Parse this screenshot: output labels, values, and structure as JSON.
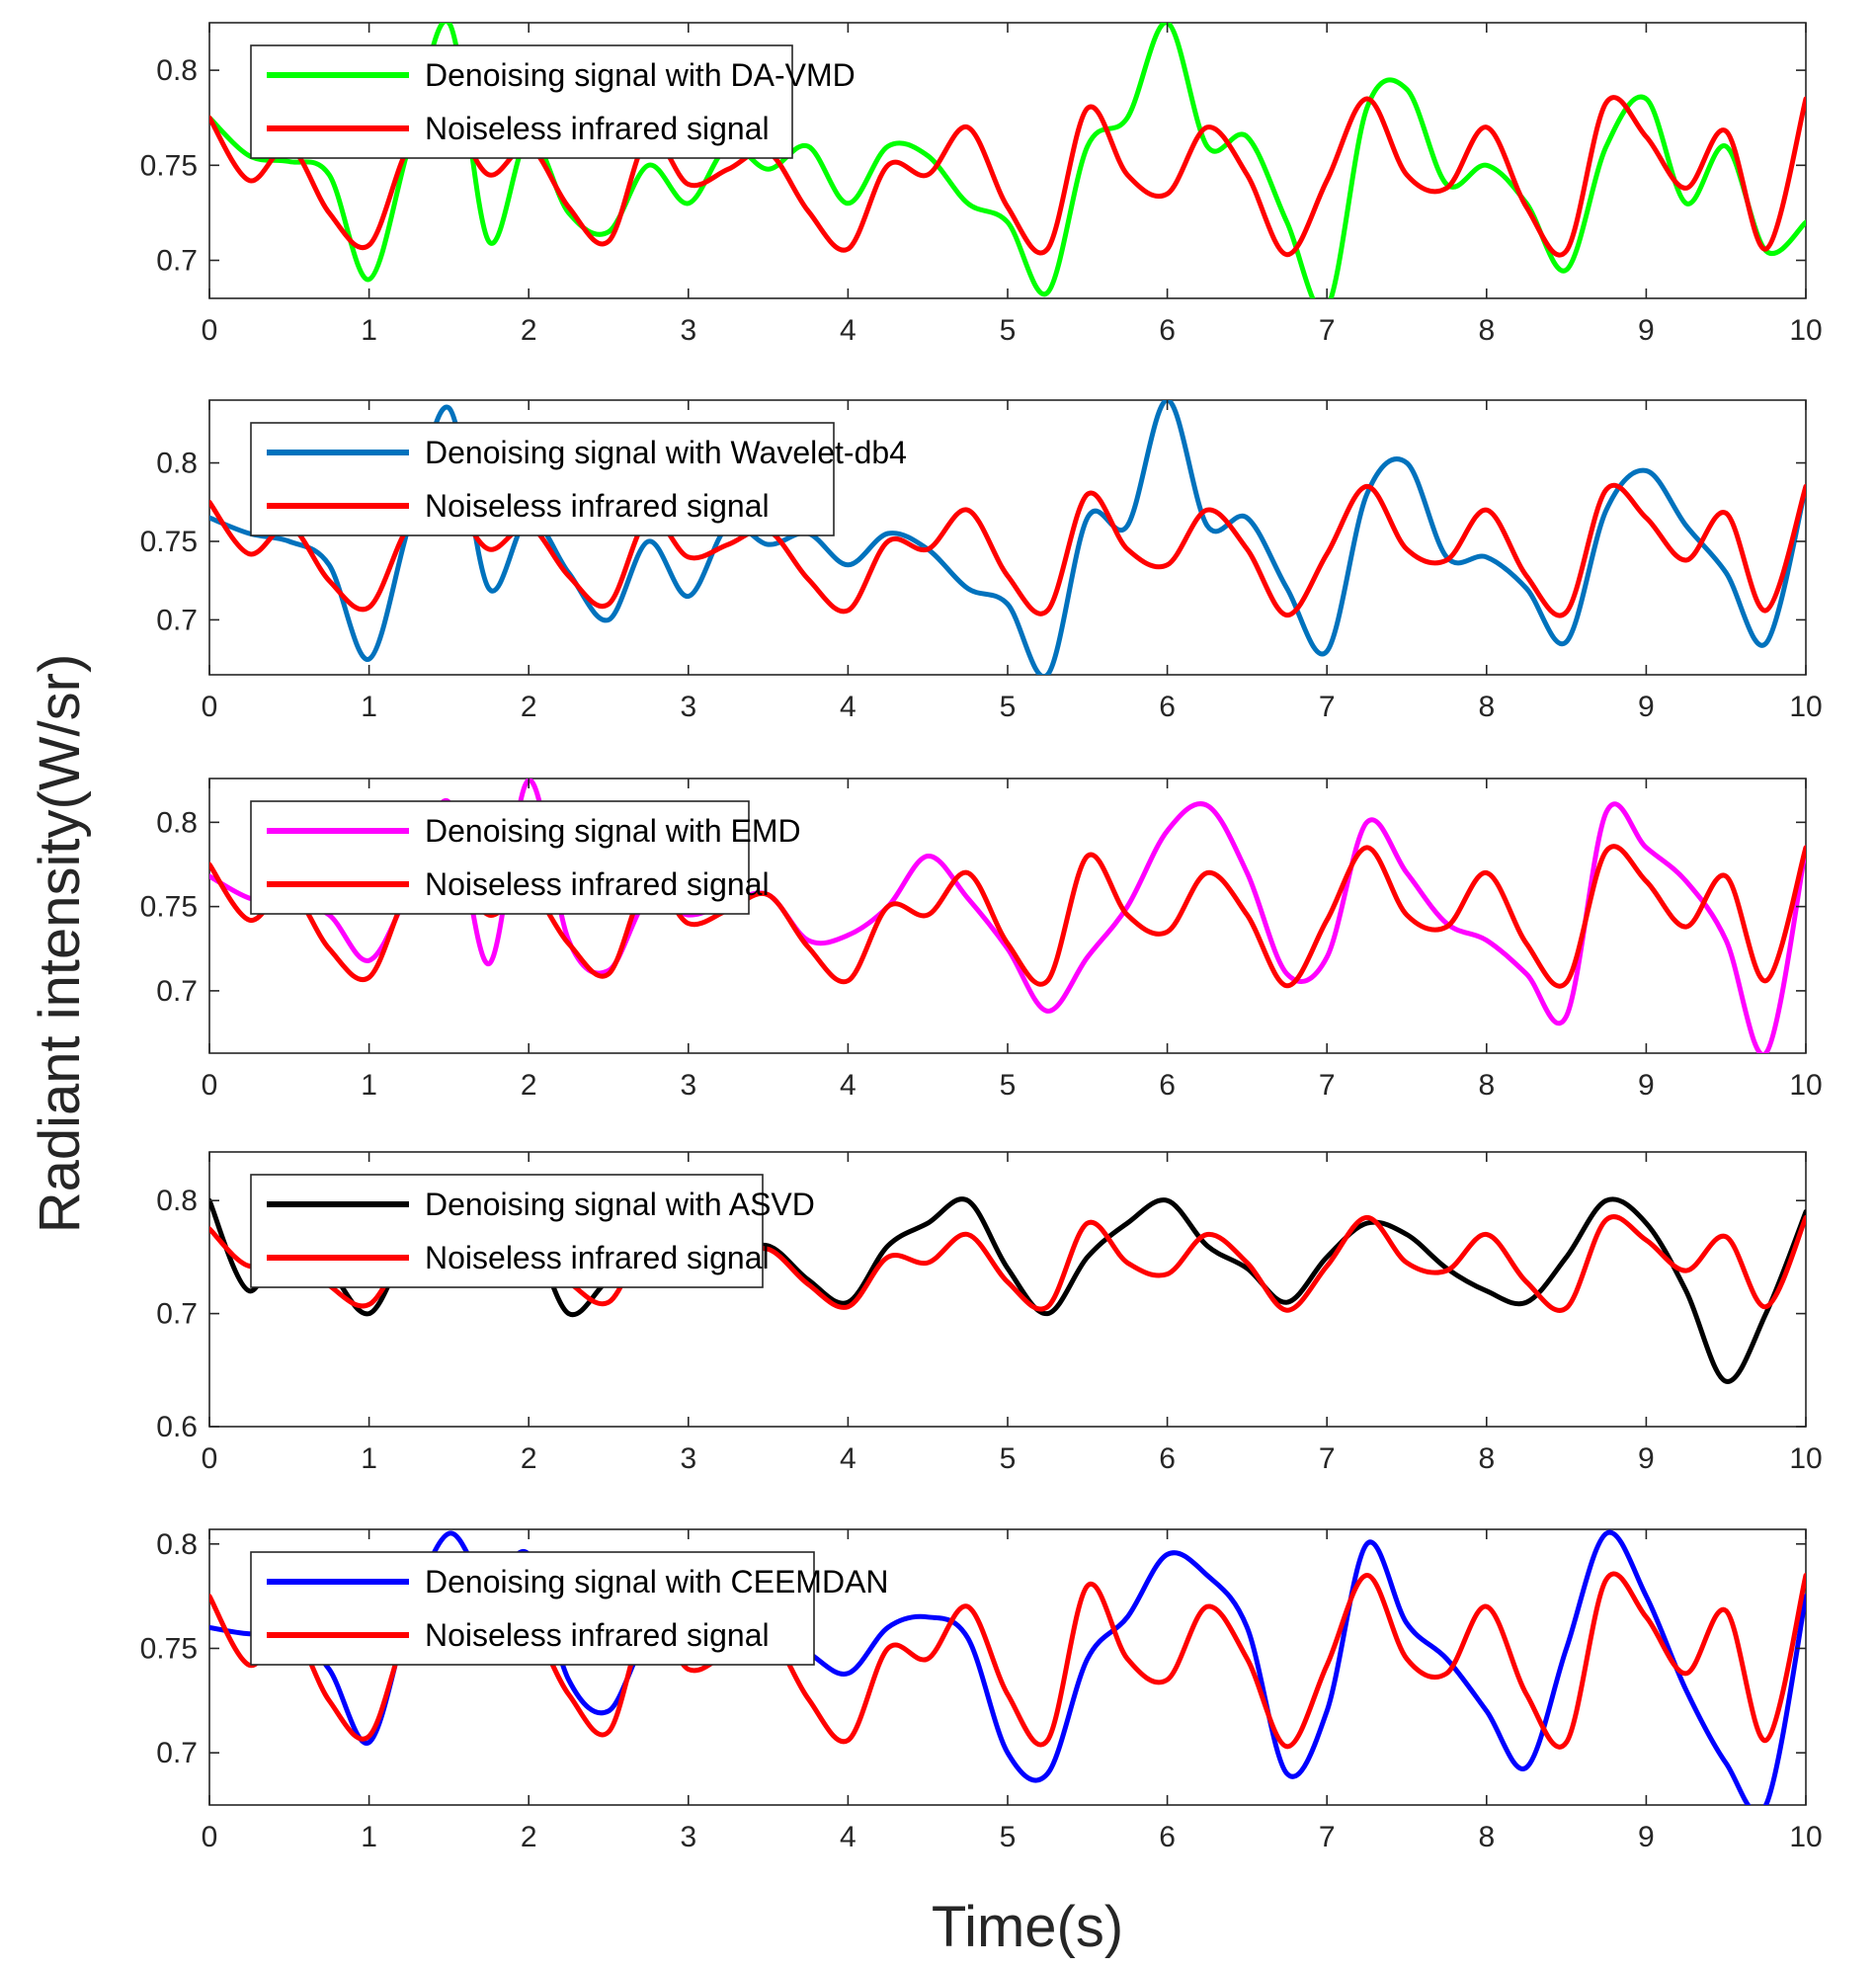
{
  "figure": {
    "ylabel": "Radiant intensity(W/sr)",
    "xlabel": "Time(s)"
  },
  "chart_data": [
    {
      "type": "line",
      "xlim": [
        0,
        10
      ],
      "ylim": [
        0.68,
        0.825
      ],
      "xticks": [
        0,
        1,
        2,
        3,
        4,
        5,
        6,
        7,
        8,
        9,
        10
      ],
      "yticks": [
        0.7,
        0.75,
        0.8
      ],
      "ytick_labels": [
        "0.7",
        "0.75",
        "0.8"
      ],
      "grid": false,
      "legend_position": "top-left",
      "x": [
        0,
        0.25,
        0.5,
        0.75,
        1,
        1.25,
        1.5,
        1.75,
        2,
        2.25,
        2.5,
        2.75,
        3,
        3.25,
        3.5,
        3.75,
        4,
        4.25,
        4.5,
        4.75,
        5,
        5.25,
        5.5,
        5.75,
        6,
        6.25,
        6.5,
        6.75,
        7,
        7.25,
        7.5,
        7.75,
        8,
        8.25,
        8.5,
        8.75,
        9,
        9.25,
        9.5,
        9.75,
        10
      ],
      "series": [
        {
          "name": "Denoising signal with DA-VMD",
          "color": "#00ff00",
          "values": [
            0.775,
            0.755,
            0.752,
            0.745,
            0.69,
            0.76,
            0.825,
            0.71,
            0.765,
            0.725,
            0.715,
            0.75,
            0.73,
            0.76,
            0.748,
            0.76,
            0.73,
            0.76,
            0.755,
            0.73,
            0.72,
            0.683,
            0.76,
            0.775,
            0.825,
            0.76,
            0.765,
            0.72,
            0.675,
            0.78,
            0.79,
            0.74,
            0.75,
            0.73,
            0.695,
            0.76,
            0.785,
            0.73,
            0.76,
            0.705,
            0.72
          ]
        },
        {
          "name": "Noiseless infrared signal",
          "color": "#ff0000",
          "values": [
            0.775,
            0.742,
            0.76,
            0.725,
            0.708,
            0.76,
            0.775,
            0.745,
            0.76,
            0.728,
            0.71,
            0.765,
            0.74,
            0.748,
            0.757,
            0.726,
            0.706,
            0.75,
            0.745,
            0.77,
            0.728,
            0.706,
            0.78,
            0.745,
            0.735,
            0.77,
            0.745,
            0.703,
            0.742,
            0.785,
            0.745,
            0.738,
            0.77,
            0.728,
            0.705,
            0.783,
            0.765,
            0.738,
            0.768,
            0.706,
            0.785
          ]
        }
      ]
    },
    {
      "type": "line",
      "xlim": [
        0,
        10
      ],
      "ylim": [
        0.665,
        0.84
      ],
      "xticks": [
        0,
        1,
        2,
        3,
        4,
        5,
        6,
        7,
        8,
        9,
        10
      ],
      "yticks": [
        0.7,
        0.75,
        0.8
      ],
      "ytick_labels": [
        "0.7",
        "0.75",
        "0.8"
      ],
      "grid": false,
      "legend_position": "top-left",
      "x": [
        0,
        0.25,
        0.5,
        0.75,
        1,
        1.25,
        1.5,
        1.75,
        2,
        2.25,
        2.5,
        2.75,
        3,
        3.25,
        3.5,
        3.75,
        4,
        4.25,
        4.5,
        4.75,
        5,
        5.25,
        5.5,
        5.75,
        6,
        6.25,
        6.5,
        6.75,
        7,
        7.25,
        7.5,
        7.75,
        8,
        8.25,
        8.5,
        8.75,
        9,
        9.25,
        9.5,
        9.75,
        10
      ],
      "series": [
        {
          "name": "Denoising signal with Wavelet-db4",
          "color": "#0072bd",
          "values": [
            0.765,
            0.755,
            0.75,
            0.735,
            0.675,
            0.76,
            0.835,
            0.72,
            0.765,
            0.73,
            0.7,
            0.75,
            0.715,
            0.76,
            0.748,
            0.755,
            0.735,
            0.755,
            0.745,
            0.72,
            0.71,
            0.665,
            0.765,
            0.76,
            0.84,
            0.76,
            0.765,
            0.72,
            0.68,
            0.78,
            0.8,
            0.74,
            0.74,
            0.72,
            0.686,
            0.77,
            0.795,
            0.76,
            0.73,
            0.685,
            0.785
          ]
        },
        {
          "name": "Noiseless infrared signal",
          "color": "#ff0000",
          "values": [
            0.775,
            0.742,
            0.76,
            0.725,
            0.708,
            0.76,
            0.775,
            0.745,
            0.76,
            0.728,
            0.71,
            0.765,
            0.74,
            0.748,
            0.757,
            0.726,
            0.706,
            0.75,
            0.745,
            0.77,
            0.728,
            0.706,
            0.78,
            0.745,
            0.735,
            0.77,
            0.745,
            0.703,
            0.742,
            0.785,
            0.745,
            0.738,
            0.77,
            0.728,
            0.705,
            0.783,
            0.765,
            0.738,
            0.768,
            0.706,
            0.785
          ]
        }
      ]
    },
    {
      "type": "line",
      "xlim": [
        0,
        10
      ],
      "ylim": [
        0.663,
        0.826
      ],
      "xticks": [
        0,
        1,
        2,
        3,
        4,
        5,
        6,
        7,
        8,
        9,
        10
      ],
      "yticks": [
        0.7,
        0.75,
        0.8
      ],
      "ytick_labels": [
        "0.7",
        "0.75",
        "0.8"
      ],
      "grid": false,
      "legend_position": "top-left",
      "x": [
        0,
        0.25,
        0.5,
        0.75,
        1,
        1.25,
        1.5,
        1.75,
        2,
        2.25,
        2.5,
        2.75,
        3,
        3.25,
        3.5,
        3.75,
        4,
        4.25,
        4.5,
        4.75,
        5,
        5.25,
        5.5,
        5.75,
        6,
        6.25,
        6.5,
        6.75,
        7,
        7.25,
        7.5,
        7.75,
        8,
        8.25,
        8.5,
        8.75,
        9,
        9.25,
        9.5,
        9.75,
        10
      ],
      "series": [
        {
          "name": "Denoising signal with EMD",
          "color": "#ff00ff",
          "values": [
            0.768,
            0.755,
            0.752,
            0.745,
            0.718,
            0.76,
            0.812,
            0.716,
            0.825,
            0.73,
            0.712,
            0.755,
            0.745,
            0.752,
            0.757,
            0.73,
            0.733,
            0.75,
            0.78,
            0.755,
            0.725,
            0.688,
            0.72,
            0.75,
            0.795,
            0.81,
            0.77,
            0.71,
            0.72,
            0.8,
            0.77,
            0.74,
            0.73,
            0.71,
            0.685,
            0.806,
            0.785,
            0.765,
            0.73,
            0.663,
            0.785
          ]
        },
        {
          "name": "Noiseless infrared signal",
          "color": "#ff0000",
          "values": [
            0.775,
            0.742,
            0.76,
            0.725,
            0.708,
            0.76,
            0.775,
            0.745,
            0.76,
            0.728,
            0.71,
            0.765,
            0.74,
            0.748,
            0.757,
            0.726,
            0.706,
            0.75,
            0.745,
            0.77,
            0.728,
            0.706,
            0.78,
            0.745,
            0.735,
            0.77,
            0.745,
            0.703,
            0.742,
            0.785,
            0.745,
            0.738,
            0.77,
            0.728,
            0.705,
            0.783,
            0.765,
            0.738,
            0.768,
            0.706,
            0.785
          ]
        }
      ]
    },
    {
      "type": "line",
      "xlim": [
        0,
        10
      ],
      "ylim": [
        0.6,
        0.843
      ],
      "xticks": [
        0,
        1,
        2,
        3,
        4,
        5,
        6,
        7,
        8,
        9,
        10
      ],
      "yticks": [
        0.6,
        0.7,
        0.8
      ],
      "ytick_labels": [
        "0.6",
        "0.7",
        "0.8"
      ],
      "grid": false,
      "legend_position": "top-left",
      "x": [
        0,
        0.25,
        0.5,
        0.75,
        1,
        1.25,
        1.5,
        1.75,
        2,
        2.25,
        2.5,
        2.75,
        3,
        3.25,
        3.5,
        3.75,
        4,
        4.25,
        4.5,
        4.75,
        5,
        5.25,
        5.5,
        5.75,
        6,
        6.25,
        6.5,
        6.75,
        7,
        7.25,
        7.5,
        7.75,
        8,
        8.25,
        8.5,
        8.75,
        9,
        9.25,
        9.5,
        9.75,
        10
      ],
      "series": [
        {
          "name": "Denoising signal with ASVD",
          "color": "#000000",
          "values": [
            0.8,
            0.72,
            0.78,
            0.74,
            0.7,
            0.76,
            0.78,
            0.75,
            0.77,
            0.7,
            0.73,
            0.75,
            0.74,
            0.75,
            0.76,
            0.73,
            0.71,
            0.76,
            0.78,
            0.8,
            0.74,
            0.7,
            0.75,
            0.78,
            0.8,
            0.76,
            0.74,
            0.71,
            0.75,
            0.78,
            0.77,
            0.74,
            0.72,
            0.71,
            0.75,
            0.8,
            0.78,
            0.72,
            0.64,
            0.7,
            0.79
          ]
        },
        {
          "name": "Noiseless infrared signal",
          "color": "#ff0000",
          "values": [
            0.775,
            0.742,
            0.76,
            0.725,
            0.708,
            0.76,
            0.775,
            0.745,
            0.76,
            0.728,
            0.71,
            0.765,
            0.74,
            0.748,
            0.757,
            0.726,
            0.706,
            0.75,
            0.745,
            0.77,
            0.728,
            0.706,
            0.78,
            0.745,
            0.735,
            0.77,
            0.745,
            0.703,
            0.742,
            0.785,
            0.745,
            0.738,
            0.77,
            0.728,
            0.705,
            0.783,
            0.765,
            0.738,
            0.768,
            0.706,
            0.785
          ]
        }
      ]
    },
    {
      "type": "line",
      "xlim": [
        0,
        10
      ],
      "ylim": [
        0.675,
        0.807
      ],
      "xticks": [
        0,
        1,
        2,
        3,
        4,
        5,
        6,
        7,
        8,
        9,
        10
      ],
      "yticks": [
        0.7,
        0.75,
        0.8
      ],
      "ytick_labels": [
        "0.7",
        "0.75",
        "0.8"
      ],
      "grid": false,
      "legend_position": "top-left",
      "x": [
        0,
        0.25,
        0.5,
        0.75,
        1,
        1.25,
        1.5,
        1.75,
        2,
        2.25,
        2.5,
        2.75,
        3,
        3.25,
        3.5,
        3.75,
        4,
        4.25,
        4.5,
        4.75,
        5,
        5.25,
        5.5,
        5.75,
        6,
        6.25,
        6.5,
        6.75,
        7,
        7.25,
        7.5,
        7.75,
        8,
        8.25,
        8.5,
        8.75,
        9,
        9.25,
        9.5,
        9.75,
        10
      ],
      "series": [
        {
          "name": "Denoising signal with CEEMDAN",
          "color": "#0000ff",
          "values": [
            0.76,
            0.757,
            0.758,
            0.74,
            0.705,
            0.765,
            0.805,
            0.78,
            0.795,
            0.735,
            0.72,
            0.755,
            0.75,
            0.752,
            0.76,
            0.748,
            0.738,
            0.76,
            0.765,
            0.755,
            0.7,
            0.69,
            0.745,
            0.765,
            0.795,
            0.785,
            0.76,
            0.69,
            0.72,
            0.8,
            0.762,
            0.745,
            0.72,
            0.693,
            0.75,
            0.805,
            0.775,
            0.73,
            0.695,
            0.675,
            0.775
          ]
        },
        {
          "name": "Noiseless infrared signal",
          "color": "#ff0000",
          "values": [
            0.775,
            0.742,
            0.76,
            0.725,
            0.708,
            0.76,
            0.775,
            0.745,
            0.76,
            0.728,
            0.71,
            0.765,
            0.74,
            0.748,
            0.757,
            0.726,
            0.706,
            0.75,
            0.745,
            0.77,
            0.728,
            0.706,
            0.78,
            0.745,
            0.735,
            0.77,
            0.745,
            0.703,
            0.742,
            0.785,
            0.745,
            0.738,
            0.77,
            0.728,
            0.705,
            0.783,
            0.765,
            0.738,
            0.768,
            0.706,
            0.785
          ]
        }
      ]
    }
  ]
}
